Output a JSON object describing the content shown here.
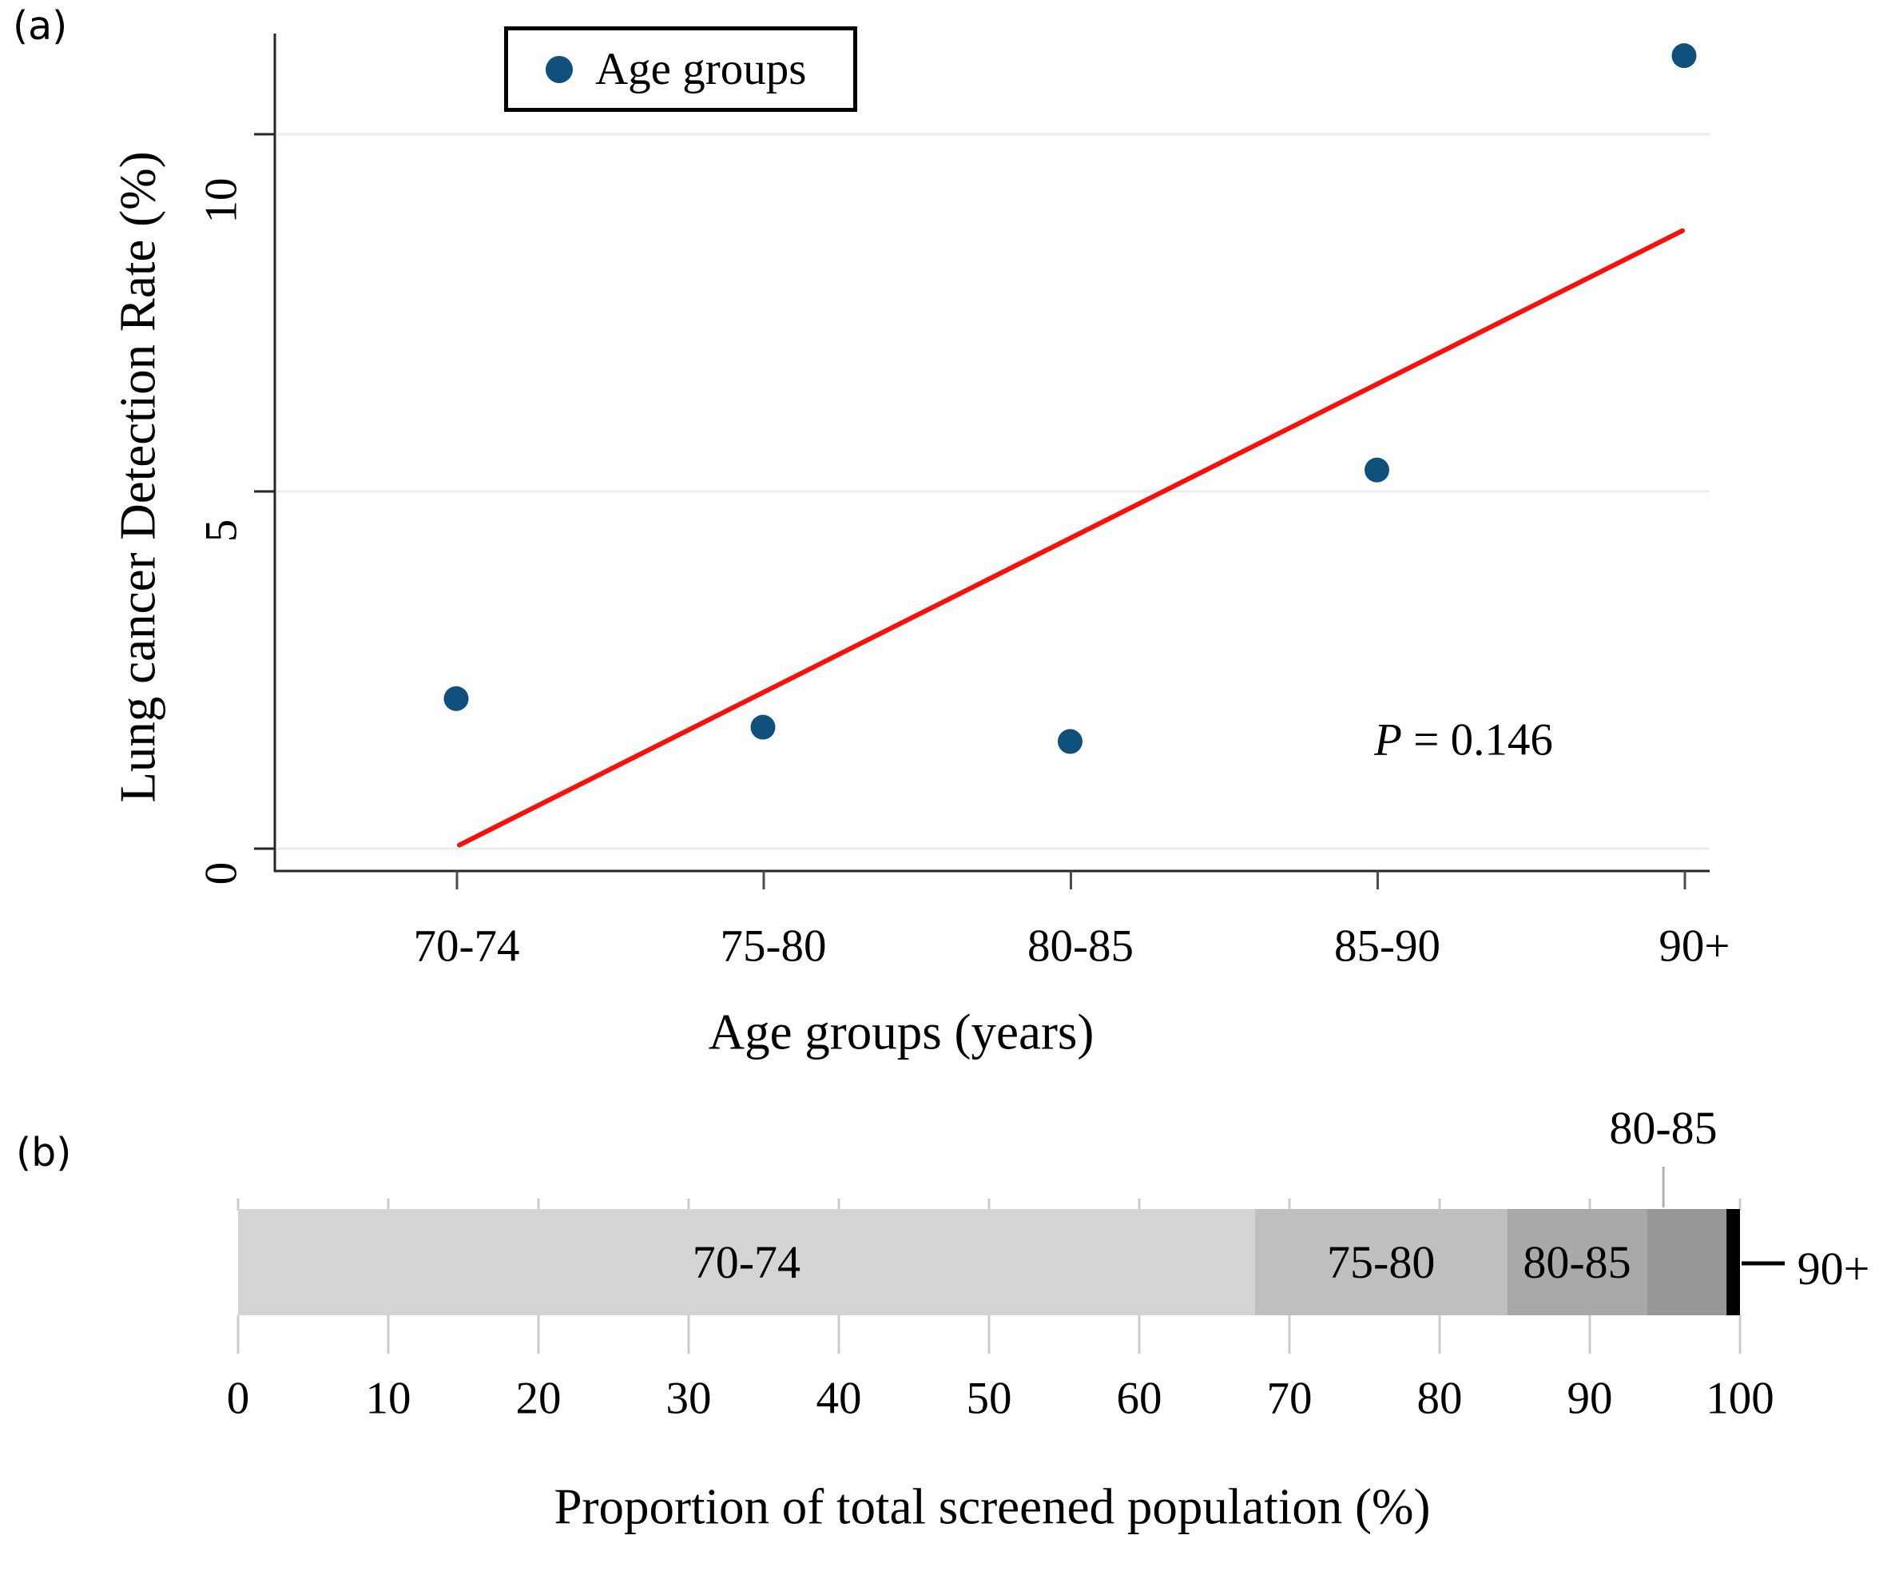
{
  "ui": {
    "panel_a_label": "(a)",
    "panel_b_label": "(b)",
    "legend_label": "Age groups",
    "p_annotation": {
      "var": "P",
      "rest": " = 0.146"
    },
    "y_axis_title_a": "Lung cancer Detection Rate (%)",
    "x_axis_title_a": "Age groups (years)",
    "x_axis_title_b": "Proportion of total screened population (%)",
    "callout_top_label": "80-85",
    "callout_right_label": "90+"
  },
  "chart_data": [
    {
      "type": "scatter",
      "panel": "a",
      "title": "",
      "categories": [
        "70-74",
        "75-80",
        "80-85",
        "85-90",
        "90+"
      ],
      "series": [
        {
          "name": "Age groups",
          "values": [
            2.1,
            1.7,
            1.5,
            5.3,
            11.1
          ]
        }
      ],
      "xlabel": "Age groups (years)",
      "ylabel": "Lung cancer Detection Rate (%)",
      "yticks": [
        0,
        5,
        10
      ],
      "ylim": [
        -0.3,
        11.7
      ],
      "grid": "horizontal-light",
      "legend": {
        "entries": [
          "Age groups"
        ],
        "position": "top-center-inside"
      },
      "marker_color": "#10507c",
      "gridline_color": "#e7efee",
      "trend_line": {
        "color": "#fa0f0a",
        "from": {
          "x": "70-74",
          "y": 0.05
        },
        "to": {
          "x": "90+",
          "y": 8.65
        }
      },
      "annotation": "P = 0.146"
    },
    {
      "type": "bar",
      "panel": "b",
      "orientation": "horizontal_stacked",
      "categories": [
        "70-74",
        "75-80",
        "80-85",
        "85-90",
        "90+"
      ],
      "values": [
        67.7,
        16.8,
        9.3,
        5.3,
        0.9
      ],
      "segment_colors": [
        "#d4d4d4",
        "#bfbfbf",
        "#a9a9a9",
        "#989898",
        "#000000"
      ],
      "in_bar_labels": [
        "70-74",
        "75-80",
        "80-85"
      ],
      "above_callout": {
        "label": "80-85",
        "points_to_percent": 94.9
      },
      "right_callout": {
        "label": "90+"
      },
      "xlabel": "Proportion of total screened population (%)",
      "xticks": [
        0,
        10,
        20,
        30,
        40,
        50,
        60,
        70,
        80,
        90,
        100
      ],
      "xlim": [
        0,
        100
      ],
      "tick_color": "#cccccc"
    }
  ]
}
